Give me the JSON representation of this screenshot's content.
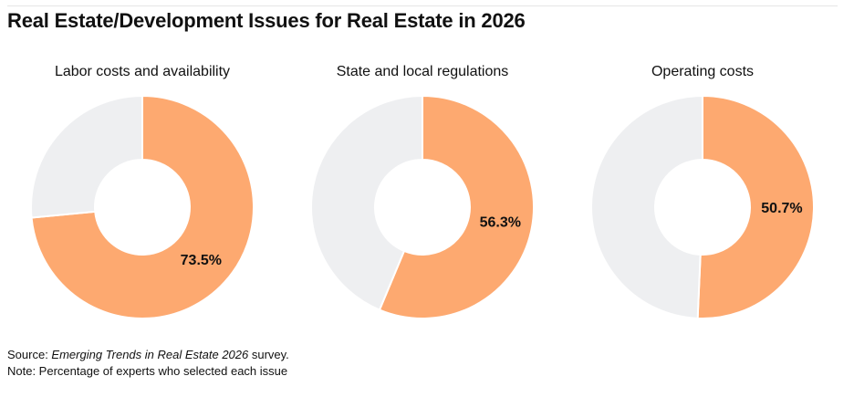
{
  "title": "Real Estate/Development Issues for Real Estate in 2026",
  "colors": {
    "value": "#FDA970",
    "remainder": "#EEEFF1",
    "separator": "#FFFFFF"
  },
  "chart_data": [
    {
      "type": "pie",
      "title": "Labor costs and availability",
      "values": [
        73.5,
        26.5
      ],
      "label": "73.5%"
    },
    {
      "type": "pie",
      "title": "State and local regulations",
      "values": [
        56.3,
        43.7
      ],
      "label": "56.3%"
    },
    {
      "type": "pie",
      "title": "Operating costs",
      "values": [
        50.7,
        49.3
      ],
      "label": "50.7%"
    }
  ],
  "footer": {
    "source_prefix": "Source: ",
    "source_title": "Emerging Trends in Real Estate 2026",
    "source_suffix": " survey.",
    "note": "Note: Percentage of experts who selected each issue"
  }
}
